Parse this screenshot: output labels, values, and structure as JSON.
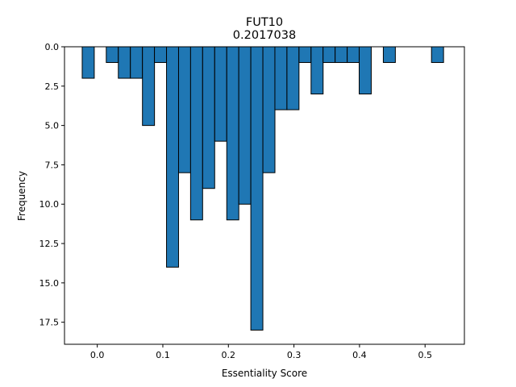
{
  "chart_data": {
    "type": "bar",
    "title": "FUT10",
    "subtitle": "0.2017038",
    "xlabel": "Essentiality Score",
    "ylabel": "Frequency",
    "xlim": [
      -0.05,
      0.56
    ],
    "ylim": [
      18.9,
      0
    ],
    "y_inverted": true,
    "grid": false,
    "bin_width": 0.01837,
    "bins": [
      {
        "x": -0.0138,
        "count": 2
      },
      {
        "x": 0.0229,
        "count": 1
      },
      {
        "x": 0.0413,
        "count": 2
      },
      {
        "x": 0.0597,
        "count": 2
      },
      {
        "x": 0.0781,
        "count": 5
      },
      {
        "x": 0.0964,
        "count": 1
      },
      {
        "x": 0.1148,
        "count": 14
      },
      {
        "x": 0.1332,
        "count": 8
      },
      {
        "x": 0.1515,
        "count": 11
      },
      {
        "x": 0.1699,
        "count": 9
      },
      {
        "x": 0.1883,
        "count": 6
      },
      {
        "x": 0.2067,
        "count": 11
      },
      {
        "x": 0.225,
        "count": 10
      },
      {
        "x": 0.2434,
        "count": 18
      },
      {
        "x": 0.2618,
        "count": 8
      },
      {
        "x": 0.2801,
        "count": 4
      },
      {
        "x": 0.2985,
        "count": 4
      },
      {
        "x": 0.3169,
        "count": 1
      },
      {
        "x": 0.3353,
        "count": 3
      },
      {
        "x": 0.3536,
        "count": 1
      },
      {
        "x": 0.372,
        "count": 1
      },
      {
        "x": 0.3904,
        "count": 1
      },
      {
        "x": 0.4087,
        "count": 3
      },
      {
        "x": 0.4455,
        "count": 1
      },
      {
        "x": 0.519,
        "count": 1
      }
    ],
    "x_ticks": [
      "0.0",
      "0.1",
      "0.2",
      "0.3",
      "0.4",
      "0.5"
    ],
    "x_tick_values": [
      0.0,
      0.1,
      0.2,
      0.3,
      0.4,
      0.5
    ],
    "y_ticks": [
      "0.0",
      "2.5",
      "5.0",
      "7.5",
      "10.0",
      "12.5",
      "15.0",
      "17.5"
    ],
    "y_tick_values": [
      0,
      2.5,
      5,
      7.5,
      10,
      12.5,
      15,
      17.5
    ],
    "colors": {
      "bar_fill": "#1f77b4",
      "bar_edge": "#000000",
      "axes": "#000000"
    }
  }
}
